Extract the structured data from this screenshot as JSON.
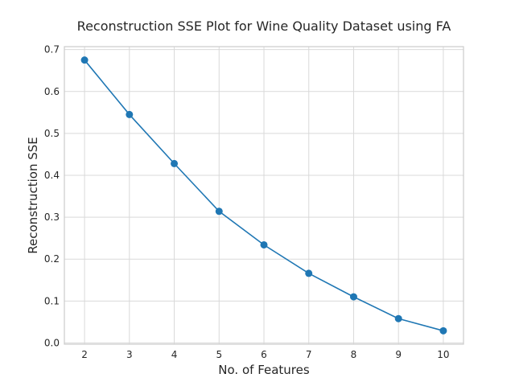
{
  "chart_data": {
    "type": "line",
    "title": "Reconstruction SSE Plot for Wine Quality Dataset using FA",
    "xlabel": "No. of Features",
    "ylabel": "Reconstruction SSE",
    "x": [
      2,
      3,
      4,
      5,
      6,
      7,
      8,
      9,
      10
    ],
    "series": [
      {
        "values": [
          0.675,
          0.545,
          0.428,
          0.314,
          0.234,
          0.166,
          0.11,
          0.058,
          0.029
        ],
        "color": "#1f77b4",
        "marker": "circle"
      }
    ],
    "xticks": [
      "2",
      "3",
      "4",
      "5",
      "6",
      "7",
      "8",
      "9",
      "10"
    ],
    "yticks": [
      "0.0",
      "0.1",
      "0.2",
      "0.3",
      "0.4",
      "0.5",
      "0.6",
      "0.7"
    ],
    "xlim": [
      1.55,
      10.45
    ],
    "ylim": [
      -0.003,
      0.707
    ],
    "grid": true,
    "legend": false
  }
}
